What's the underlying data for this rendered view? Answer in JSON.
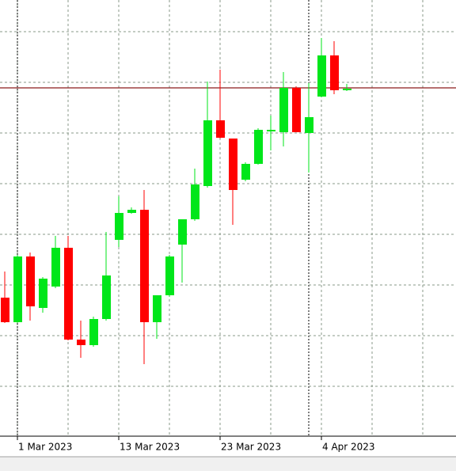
{
  "chart_data": {
    "type": "candlestick",
    "categories": [
      null,
      "1 Mar 2023",
      null,
      null,
      null,
      null,
      null,
      null,
      null,
      "13 Mar 2023",
      null,
      null,
      null,
      null,
      null,
      null,
      null,
      "23 Mar 2023",
      null,
      null,
      null,
      null,
      null,
      null,
      null,
      "4 Apr 2023",
      null,
      null
    ],
    "open": [
      174,
      143,
      226,
      161,
      188,
      237,
      121,
      114,
      147,
      247,
      281,
      285,
      143,
      177,
      241,
      273,
      315,
      398,
      375,
      323,
      343,
      384,
      383,
      439,
      382,
      428,
      480,
      436
    ],
    "high": [
      207,
      228,
      231,
      200,
      252,
      252,
      145,
      150,
      257,
      302,
      288,
      310,
      177,
      228,
      273,
      337,
      447,
      462,
      375,
      345,
      388,
      404,
      459,
      441,
      445,
      502,
      498,
      444
    ],
    "low": [
      142,
      142,
      145,
      155,
      186,
      120,
      98,
      112,
      145,
      238,
      280,
      90,
      122,
      175,
      193,
      271,
      313,
      375,
      266,
      321,
      342,
      360,
      365,
      383,
      332,
      427,
      431,
      435
    ],
    "close": [
      143,
      226,
      163,
      198,
      237,
      121,
      114,
      147,
      202,
      281,
      285,
      143,
      177,
      226,
      273,
      317,
      398,
      376,
      310,
      343,
      386,
      386,
      439,
      383,
      402,
      480,
      436,
      438
    ],
    "up_color": "#00e61a",
    "down_color": "#ff0000",
    "ylim": [
      0,
      550
    ],
    "yticks": [
      62,
      126,
      190,
      254,
      318,
      382,
      446,
      510
    ],
    "grid": true,
    "level_line": {
      "value": 439,
      "color": "#8b1a1a"
    }
  }
}
